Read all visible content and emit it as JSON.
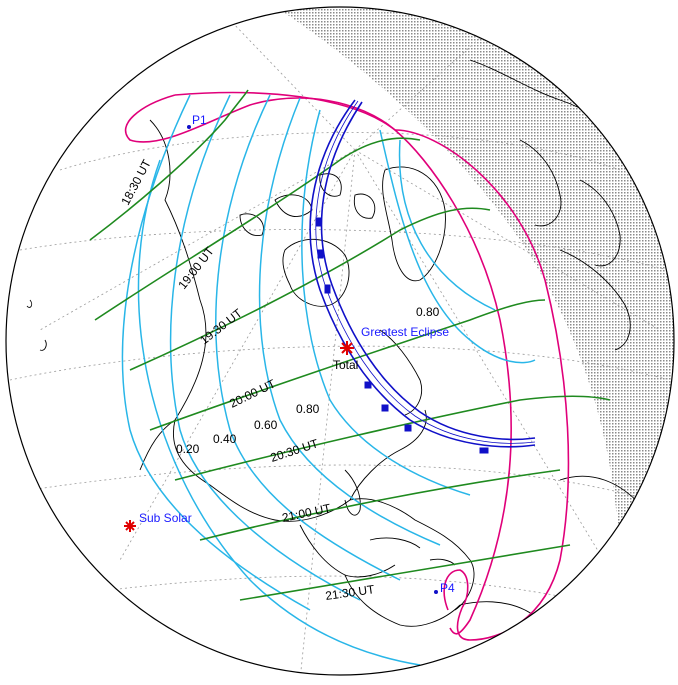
{
  "map": {
    "labels": {
      "greatest_eclipse": "Greatest Eclipse",
      "total": "Total",
      "sub_solar": "Sub Solar",
      "p1": "P1",
      "p4": "P4"
    },
    "ut_labels": [
      "18:30 UT",
      "19:00 UT",
      "19:30 UT",
      "20:00 UT",
      "20:30 UT",
      "21:00 UT",
      "21:30 UT"
    ],
    "magnitude_labels": [
      "0.20",
      "0.40",
      "0.60",
      "0.80",
      "0.80"
    ],
    "colors": {
      "penumbra_limit": "#e0007a",
      "magnitude_curves": "#29b6e8",
      "ut_curves": "#1f8a1f",
      "central_path": "#1010c8",
      "marker": "#e00000",
      "night_shade": "#c8c8c8",
      "coastline": "#000000",
      "graticule": "#888888"
    },
    "icons": {
      "greatest_eclipse_marker": "red-asterisk",
      "sub_solar_marker": "red-asterisk"
    }
  }
}
